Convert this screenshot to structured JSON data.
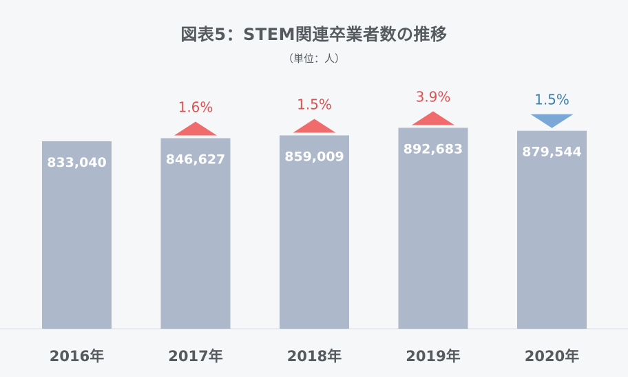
{
  "chart_data": {
    "type": "bar",
    "title": "図表5：STEM関連卒業者数の推移",
    "subtitle": "（単位：人）",
    "categories": [
      "2016年",
      "2017年",
      "2018年",
      "2019年",
      "2020年"
    ],
    "values": [
      833040,
      846627,
      859009,
      892683,
      879544
    ],
    "value_labels": [
      "833,040",
      "846,627",
      "859,009",
      "892,683",
      "879,544"
    ],
    "changes": [
      null,
      {
        "label": "1.6%",
        "direction": "up"
      },
      {
        "label": "1.5%",
        "direction": "up"
      },
      {
        "label": "3.9%",
        "direction": "up"
      },
      {
        "label": "1.5%",
        "direction": "down"
      }
    ],
    "ylim": [
      0,
      940000
    ],
    "grid": false,
    "colors": {
      "bar": "#adb8ca",
      "up": "#f06b6b",
      "down": "#7ba7d6",
      "up_text": "#e05050",
      "down_text": "#3f7fa8",
      "axis_label": "#555a5f",
      "value_text": "#ffffff",
      "baseline": "#d8dce2"
    }
  }
}
